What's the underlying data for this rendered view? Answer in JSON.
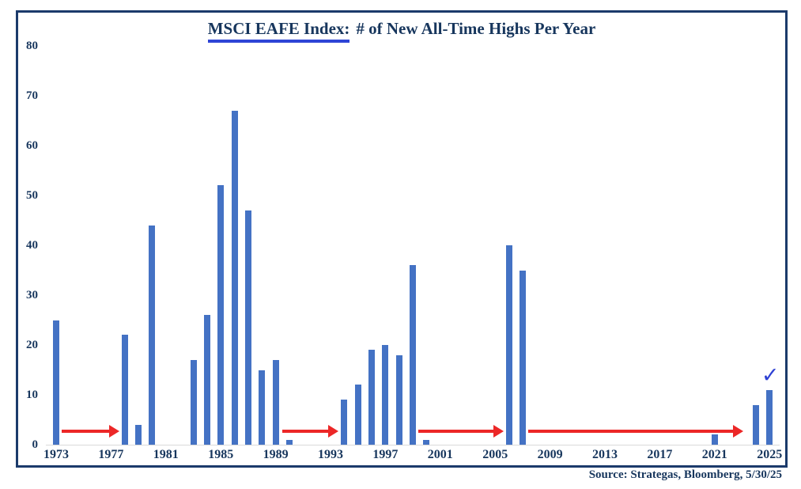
{
  "title": {
    "underlined_part": "MSCI EAFE Index:",
    "rest_part": "# of New All-Time Highs Per Year"
  },
  "source_note": "Source: Strategas, Bloomberg, 5/30/25",
  "annotation_checkmark": "✓",
  "colors": {
    "navy_text": "#17365d",
    "frame_border": "#1b3a6b",
    "bar_blue": "#4472c4",
    "arrow_red": "#ec2727",
    "underline_blue": "#2e45d6",
    "checkmark_blue": "#2e41d4",
    "axis_line_gray": "#d9d9d9"
  },
  "chart_data": {
    "type": "bar",
    "title": "MSCI EAFE Index: # of New All-Time Highs Per Year",
    "xlabel": "",
    "ylabel": "",
    "ylim": [
      0,
      80
    ],
    "y_ticks": [
      0,
      10,
      20,
      30,
      40,
      50,
      60,
      70,
      80
    ],
    "x_tick_labels": [
      "1973",
      "1977",
      "1981",
      "1985",
      "1989",
      "1993",
      "1997",
      "2001",
      "2005",
      "2009",
      "2013",
      "2017",
      "2021",
      "2025"
    ],
    "grid": false,
    "legend": false,
    "start_year": 1973,
    "end_year": 2025,
    "values_by_year": [
      25,
      0,
      0,
      0,
      0,
      22,
      4,
      44,
      0,
      0,
      17,
      26,
      52,
      67,
      47,
      15,
      17,
      1,
      0,
      0,
      0,
      9,
      12,
      19,
      20,
      18,
      36,
      1,
      0,
      0,
      0,
      0,
      0,
      40,
      35,
      0,
      0,
      0,
      0,
      0,
      0,
      0,
      0,
      0,
      0,
      0,
      0,
      0,
      2,
      0,
      0,
      8,
      11
    ],
    "arrows": [
      {
        "from_year": 1973.4,
        "to_year": 1977.6,
        "at_value": 2.7
      },
      {
        "from_year": 1989.5,
        "to_year": 1993.6,
        "at_value": 2.7
      },
      {
        "from_year": 1999.4,
        "to_year": 2005.6,
        "at_value": 2.7
      },
      {
        "from_year": 2007.4,
        "to_year": 2023.1,
        "at_value": 2.7
      }
    ],
    "checkmark_year": 2025
  }
}
